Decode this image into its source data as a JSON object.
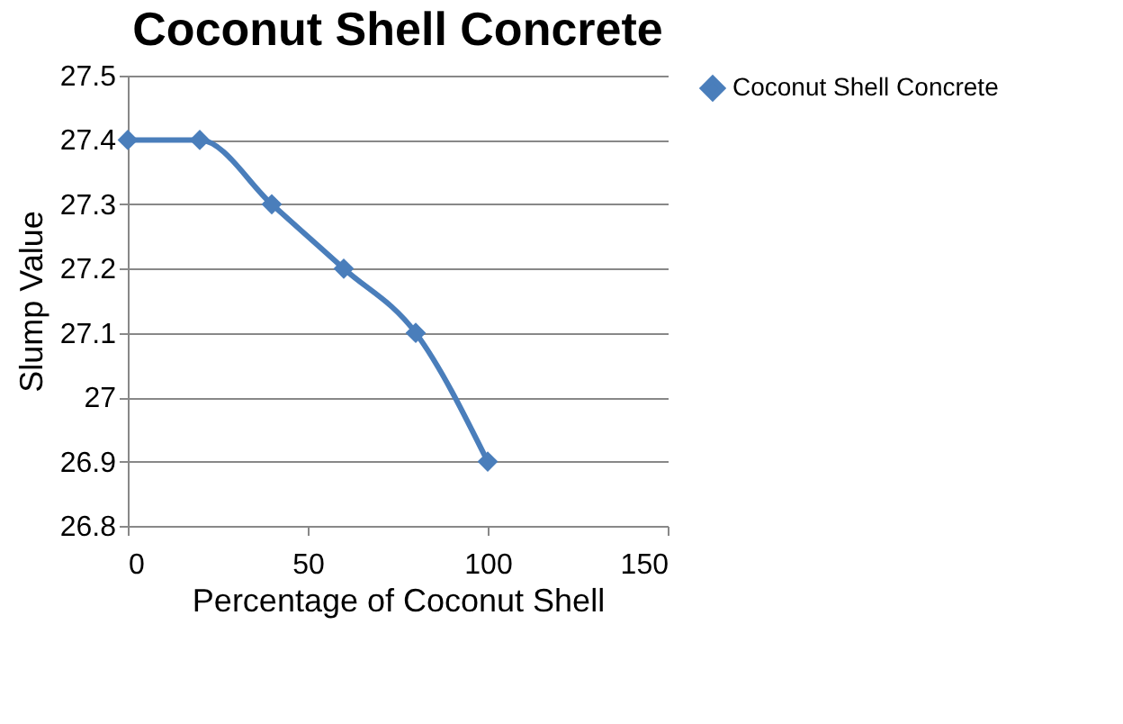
{
  "chart_data": {
    "type": "line",
    "title": "Coconut Shell Concrete",
    "xlabel": "Percentage of Coconut Shell",
    "ylabel": "Slump Value",
    "x": [
      0,
      20,
      40,
      60,
      80,
      100
    ],
    "series": [
      {
        "name": "Coconut Shell Concrete",
        "color": "#4a7ebb",
        "values": [
          27.4,
          27.4,
          27.3,
          27.2,
          27.1,
          26.9
        ]
      }
    ],
    "xlim": [
      0,
      150
    ],
    "xticks": [
      0,
      50,
      100,
      150
    ],
    "ylim": [
      26.8,
      27.5
    ],
    "yticks": [
      26.8,
      26.9,
      27,
      27.1,
      27.2,
      27.3,
      27.4,
      27.5
    ],
    "grid": "y",
    "legend": "right",
    "marker": "diamond",
    "line_style": "solid"
  }
}
